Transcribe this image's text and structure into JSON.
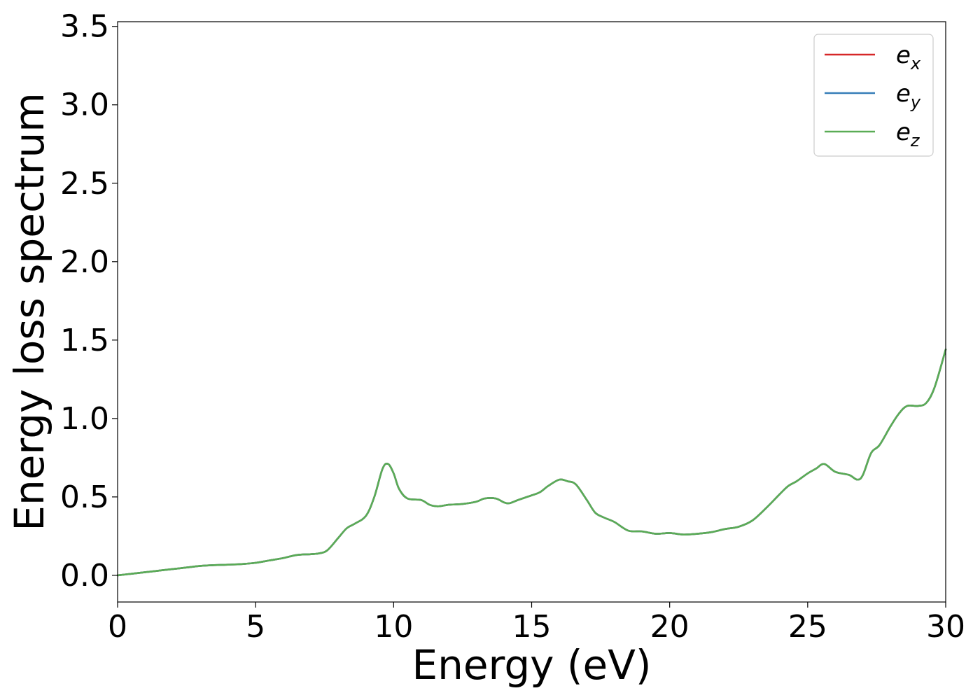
{
  "chart_data": {
    "type": "line",
    "title": "",
    "xlabel": "Energy (eV)",
    "ylabel": "Energy loss spectrum",
    "xlim": [
      0,
      30
    ],
    "ylim": [
      -0.17,
      3.53
    ],
    "xticks": [
      0,
      5,
      10,
      15,
      20,
      25,
      30
    ],
    "yticks": [
      0.0,
      0.5,
      1.0,
      1.5,
      2.0,
      2.5,
      3.0,
      3.5
    ],
    "xtick_labels": [
      "0",
      "5",
      "10",
      "15",
      "20",
      "25",
      "30"
    ],
    "ytick_labels": [
      "0.0",
      "0.5",
      "1.0",
      "1.5",
      "2.0",
      "2.5",
      "3.0",
      "3.5"
    ],
    "grid": false,
    "legend_position": "top-right",
    "x": [
      0,
      0.5,
      1,
      1.5,
      2,
      2.5,
      3,
      3.5,
      4,
      4.5,
      5,
      5.5,
      6,
      6.5,
      7,
      7.3,
      7.6,
      8,
      8.3,
      8.6,
      9,
      9.3,
      9.6,
      9.8,
      10,
      10.2,
      10.5,
      11,
      11.3,
      11.6,
      12,
      12.5,
      13,
      13.3,
      13.7,
      14,
      14.2,
      14.5,
      15,
      15.3,
      15.6,
      16,
      16.3,
      16.6,
      17,
      17.3,
      17.6,
      18,
      18.5,
      19,
      19.5,
      20,
      20.5,
      21,
      21.5,
      22,
      22.5,
      23,
      23.5,
      24,
      24.3,
      24.6,
      25,
      25.3,
      25.6,
      26,
      26.5,
      26.8,
      27,
      27.3,
      27.6,
      28,
      28.3,
      28.6,
      29,
      29.3,
      29.6,
      30
    ],
    "series": [
      {
        "name": "e",
        "subscript": "x",
        "color": "#d62728",
        "values": [
          0.0,
          0.01,
          0.02,
          0.03,
          0.04,
          0.05,
          0.06,
          0.065,
          0.068,
          0.072,
          0.08,
          0.095,
          0.11,
          0.13,
          0.135,
          0.14,
          0.16,
          0.24,
          0.3,
          0.33,
          0.38,
          0.5,
          0.68,
          0.71,
          0.65,
          0.55,
          0.49,
          0.48,
          0.45,
          0.44,
          0.45,
          0.455,
          0.47,
          0.49,
          0.49,
          0.465,
          0.46,
          0.48,
          0.51,
          0.53,
          0.57,
          0.61,
          0.6,
          0.58,
          0.48,
          0.4,
          0.37,
          0.34,
          0.285,
          0.28,
          0.265,
          0.27,
          0.26,
          0.265,
          0.275,
          0.295,
          0.31,
          0.35,
          0.43,
          0.52,
          0.57,
          0.6,
          0.65,
          0.68,
          0.71,
          0.66,
          0.64,
          0.61,
          0.64,
          0.78,
          0.83,
          0.95,
          1.03,
          1.08,
          1.08,
          1.1,
          1.2,
          1.44
        ]
      },
      {
        "name": "e",
        "subscript": "y",
        "color": "#377eb8",
        "values": [
          0.0,
          0.01,
          0.02,
          0.03,
          0.04,
          0.05,
          0.06,
          0.065,
          0.068,
          0.072,
          0.08,
          0.095,
          0.11,
          0.13,
          0.135,
          0.14,
          0.16,
          0.24,
          0.3,
          0.33,
          0.38,
          0.5,
          0.68,
          0.71,
          0.65,
          0.55,
          0.49,
          0.48,
          0.45,
          0.44,
          0.45,
          0.455,
          0.47,
          0.49,
          0.49,
          0.465,
          0.46,
          0.48,
          0.51,
          0.53,
          0.57,
          0.61,
          0.6,
          0.58,
          0.48,
          0.4,
          0.37,
          0.34,
          0.285,
          0.28,
          0.265,
          0.27,
          0.26,
          0.265,
          0.275,
          0.295,
          0.31,
          0.35,
          0.43,
          0.52,
          0.57,
          0.6,
          0.65,
          0.68,
          0.71,
          0.66,
          0.64,
          0.61,
          0.64,
          0.78,
          0.83,
          0.95,
          1.03,
          1.08,
          1.08,
          1.1,
          1.2,
          1.44
        ]
      },
      {
        "name": "e",
        "subscript": "z",
        "color": "#5aac56",
        "values": [
          0.0,
          0.01,
          0.02,
          0.03,
          0.04,
          0.05,
          0.06,
          0.065,
          0.068,
          0.072,
          0.08,
          0.095,
          0.11,
          0.13,
          0.135,
          0.14,
          0.16,
          0.24,
          0.3,
          0.33,
          0.38,
          0.5,
          0.68,
          0.71,
          0.65,
          0.55,
          0.49,
          0.48,
          0.45,
          0.44,
          0.45,
          0.455,
          0.47,
          0.49,
          0.49,
          0.465,
          0.46,
          0.48,
          0.51,
          0.53,
          0.57,
          0.61,
          0.6,
          0.58,
          0.48,
          0.4,
          0.37,
          0.34,
          0.285,
          0.28,
          0.265,
          0.27,
          0.26,
          0.265,
          0.275,
          0.295,
          0.31,
          0.35,
          0.43,
          0.52,
          0.57,
          0.6,
          0.65,
          0.68,
          0.71,
          0.66,
          0.64,
          0.61,
          0.64,
          0.78,
          0.83,
          0.95,
          1.03,
          1.08,
          1.08,
          1.1,
          1.2,
          1.44
        ]
      }
    ]
  }
}
